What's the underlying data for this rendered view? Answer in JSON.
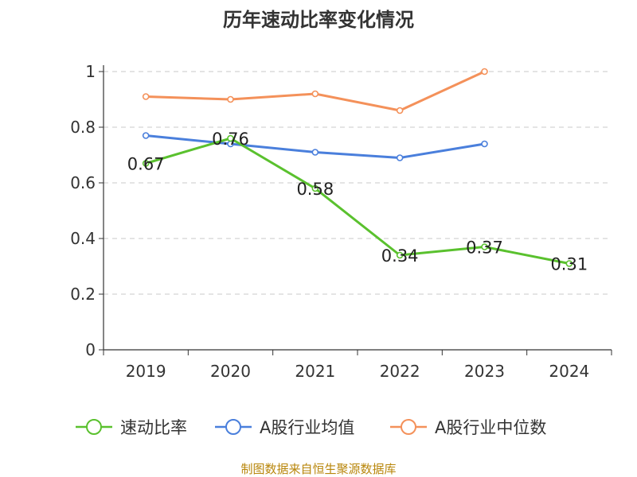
{
  "chart_data": {
    "type": "line",
    "title": "历年速动比率变化情况",
    "categories": [
      "2019",
      "2020",
      "2021",
      "2022",
      "2023",
      "2024"
    ],
    "ylim": [
      0,
      1
    ],
    "yticks": [
      "0",
      "0.2",
      "0.4",
      "0.6",
      "0.8",
      "1"
    ],
    "grid": true,
    "legend_position": "bottom",
    "series": [
      {
        "name": "速动比率",
        "color": "#5ac12e",
        "values": [
          0.67,
          0.76,
          0.58,
          0.34,
          0.37,
          0.31
        ],
        "labels": [
          "0.67",
          "0.76",
          "0.58",
          "0.34",
          "0.37",
          "0.31"
        ]
      },
      {
        "name": "A股行业均值",
        "color": "#4a7fdc",
        "values": [
          0.77,
          0.74,
          0.71,
          0.69,
          0.74,
          null
        ]
      },
      {
        "name": "A股行业中位数",
        "color": "#f4915a",
        "values": [
          0.91,
          0.9,
          0.92,
          0.86,
          1.0,
          null
        ]
      }
    ]
  },
  "source": "制图数据来自恒生聚源数据库"
}
